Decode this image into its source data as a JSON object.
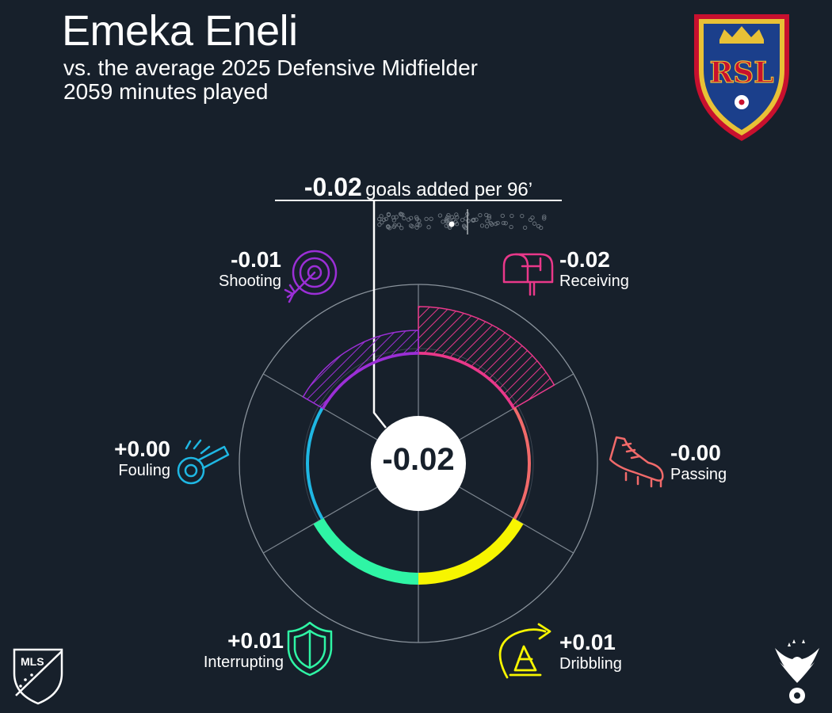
{
  "header": {
    "title": "Emeka Eneli",
    "subtitle": "vs. the average 2025 Defensive Midfielder",
    "minutes": "2059 minutes played"
  },
  "total": {
    "value": "-0.02",
    "label": "goals added per 96’",
    "center_value": "-0.02"
  },
  "chart_data": {
    "type": "radial",
    "title": "-0.02 goals added per 96’",
    "categories": [
      "Receiving",
      "Passing",
      "Dribbling",
      "Interrupting",
      "Fouling",
      "Shooting"
    ],
    "values": [
      -0.02,
      -0.0,
      0.01,
      0.01,
      0.0,
      -0.01
    ],
    "labels": [
      "-0.02",
      "-0.00",
      "+0.01",
      "+0.01",
      "+0.00",
      "-0.01"
    ],
    "colors": [
      "#e9388a",
      "#f16a6a",
      "#f7f500",
      "#2ff5a5",
      "#1fb7e3",
      "#9b2fd6"
    ],
    "icons": [
      "mailbox-icon",
      "cleat-icon",
      "cone-icon",
      "shield-icon",
      "whistle-icon",
      "target-icon"
    ]
  },
  "categories": {
    "receiving": {
      "value": "-0.02",
      "label": "Receiving",
      "color": "#e9388a",
      "icon": "mailbox-icon"
    },
    "passing": {
      "value": "-0.00",
      "label": "Passing",
      "color": "#f16a6a",
      "icon": "cleat-icon"
    },
    "dribbling": {
      "value": "+0.01",
      "label": "Dribbling",
      "color": "#f7f500",
      "icon": "cone-icon"
    },
    "interrupting": {
      "value": "+0.01",
      "label": "Interrupting",
      "color": "#2ff5a5",
      "icon": "shield-icon"
    },
    "fouling": {
      "value": "+0.00",
      "label": "Fouling",
      "color": "#1fb7e3",
      "icon": "whistle-icon"
    },
    "shooting": {
      "value": "-0.01",
      "label": "Shooting",
      "color": "#9b2fd6",
      "icon": "target-icon"
    }
  },
  "logos": {
    "club": "real-salt-lake-crest-icon",
    "club_text": "RSL",
    "league": "mls-logo-icon",
    "league_text": "MLS",
    "brand": "eagle-logo-icon"
  }
}
